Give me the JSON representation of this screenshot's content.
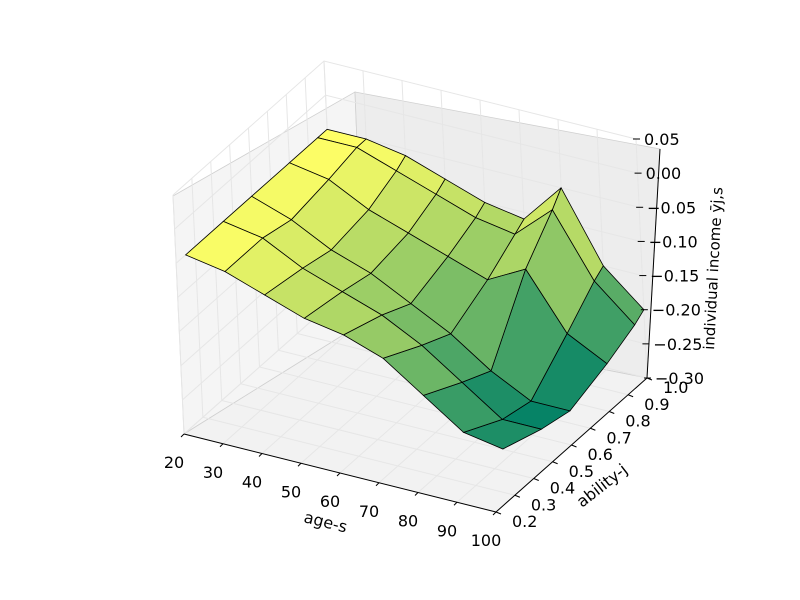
{
  "chart_data": {
    "type": "surface3d",
    "xlabel": "age-s",
    "ylabel": "ability-j",
    "zlabel": "individual income ȳj,s",
    "x_ticks": [
      "20",
      "30",
      "40",
      "50",
      "60",
      "70",
      "80",
      "90",
      "100"
    ],
    "y_ticks": [
      "0.2",
      "0.3",
      "0.4",
      "0.5",
      "0.6",
      "0.7",
      "0.8",
      "0.9",
      "1.0"
    ],
    "z_ticks": [
      "0.05",
      "0.00",
      "−0.05",
      "−0.10",
      "−0.15",
      "−0.20",
      "−0.25",
      "−0.30"
    ],
    "xlim": [
      20,
      100
    ],
    "ylim": [
      0.2,
      1.0
    ],
    "zlim": [
      -0.3,
      0.05
    ],
    "colormap": "summer",
    "colors": {
      "pane": "#f2f2f2",
      "grid": "#e6e6e6",
      "edge": "#000000"
    },
    "surface_samples": {
      "ages": [
        20,
        30,
        40,
        50,
        60,
        70,
        80,
        90,
        100
      ],
      "abilities": [
        0.25,
        0.45,
        0.6,
        0.8,
        0.95,
        1.0
      ],
      "z": [
        [
          -0.05,
          -0.06,
          -0.08,
          -0.1,
          -0.11,
          -0.13,
          -0.17,
          -0.21,
          -0.22
        ],
        [
          -0.05,
          -0.06,
          -0.09,
          -0.11,
          -0.13,
          -0.16,
          -0.2,
          -0.24,
          -0.24
        ],
        [
          -0.05,
          -0.07,
          -0.1,
          -0.12,
          -0.15,
          -0.18,
          -0.22,
          -0.25,
          -0.25
        ],
        [
          -0.05,
          -0.06,
          -0.09,
          -0.11,
          -0.13,
          -0.15,
          -0.12,
          -0.2,
          -0.23
        ],
        [
          -0.05,
          -0.05,
          -0.07,
          -0.09,
          -0.11,
          -0.12,
          -0.07,
          -0.16,
          -0.21
        ],
        [
          -0.05,
          -0.05,
          -0.06,
          -0.08,
          -0.1,
          -0.11,
          -0.05,
          -0.15,
          -0.2
        ]
      ]
    }
  }
}
